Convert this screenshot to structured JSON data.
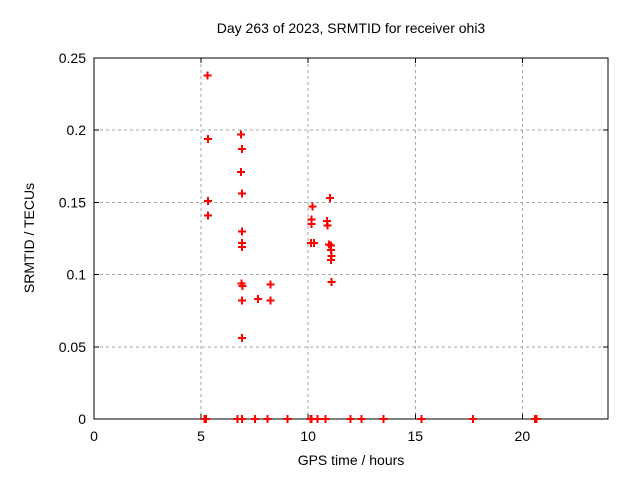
{
  "chart_data": {
    "type": "scatter",
    "title": "Day 263 of 2023, SRMTID for receiver ohi3",
    "xlabel": "GPS time / hours",
    "ylabel": "SRMTID / TECUs",
    "xlim": [
      0,
      24
    ],
    "ylim": [
      0,
      0.25
    ],
    "xticks": [
      0,
      5,
      10,
      15,
      20
    ],
    "yticks": [
      0,
      0.05,
      0.1,
      0.15,
      0.2,
      0.25
    ],
    "grid": true,
    "legend_position": "none",
    "marker": {
      "shape": "plus",
      "color": "#ff0000",
      "size": 9
    },
    "series": [
      {
        "name": "SRMTID",
        "points": [
          [
            5.17,
            0
          ],
          [
            5.22,
            0
          ],
          [
            5.29,
            0.238
          ],
          [
            5.33,
            0.194
          ],
          [
            5.32,
            0.151
          ],
          [
            5.32,
            0.141
          ],
          [
            6.69,
            0
          ],
          [
            6.86,
            0.197
          ],
          [
            6.91,
            0.187
          ],
          [
            6.86,
            0.171
          ],
          [
            6.91,
            0.156
          ],
          [
            6.91,
            0.13
          ],
          [
            6.91,
            0.122
          ],
          [
            6.91,
            0.119
          ],
          [
            6.88,
            0.094
          ],
          [
            6.93,
            0.092
          ],
          [
            6.91,
            0.082
          ],
          [
            6.91,
            0.056
          ],
          [
            6.91,
            0
          ],
          [
            7.52,
            0
          ],
          [
            7.66,
            0.083
          ],
          [
            8.11,
            0
          ],
          [
            8.25,
            0.093
          ],
          [
            8.25,
            0.082
          ],
          [
            9.03,
            0
          ],
          [
            10.1,
            0
          ],
          [
            10.16,
            0
          ],
          [
            10.13,
            0.122
          ],
          [
            10.16,
            0.138
          ],
          [
            10.16,
            0.135
          ],
          [
            10.2,
            0.147
          ],
          [
            10.28,
            0.122
          ],
          [
            10.43,
            0
          ],
          [
            10.82,
            0
          ],
          [
            10.88,
            0.137
          ],
          [
            10.9,
            0.134
          ],
          [
            10.97,
            0.121
          ],
          [
            11.02,
            0.153
          ],
          [
            11.07,
            0.12
          ],
          [
            11.07,
            0.117
          ],
          [
            11.08,
            0.113
          ],
          [
            11.07,
            0.11
          ],
          [
            11.1,
            0.095
          ],
          [
            11.98,
            0
          ],
          [
            12.5,
            0
          ],
          [
            13.51,
            0
          ],
          [
            15.3,
            0
          ],
          [
            17.7,
            0
          ],
          [
            20.6,
            0
          ],
          [
            20.66,
            0
          ]
        ]
      }
    ]
  },
  "colors": {
    "marker": "#ff0000",
    "border": "#000000",
    "grid": "#a6a6a6",
    "text": "#000000",
    "background": "#ffffff"
  }
}
